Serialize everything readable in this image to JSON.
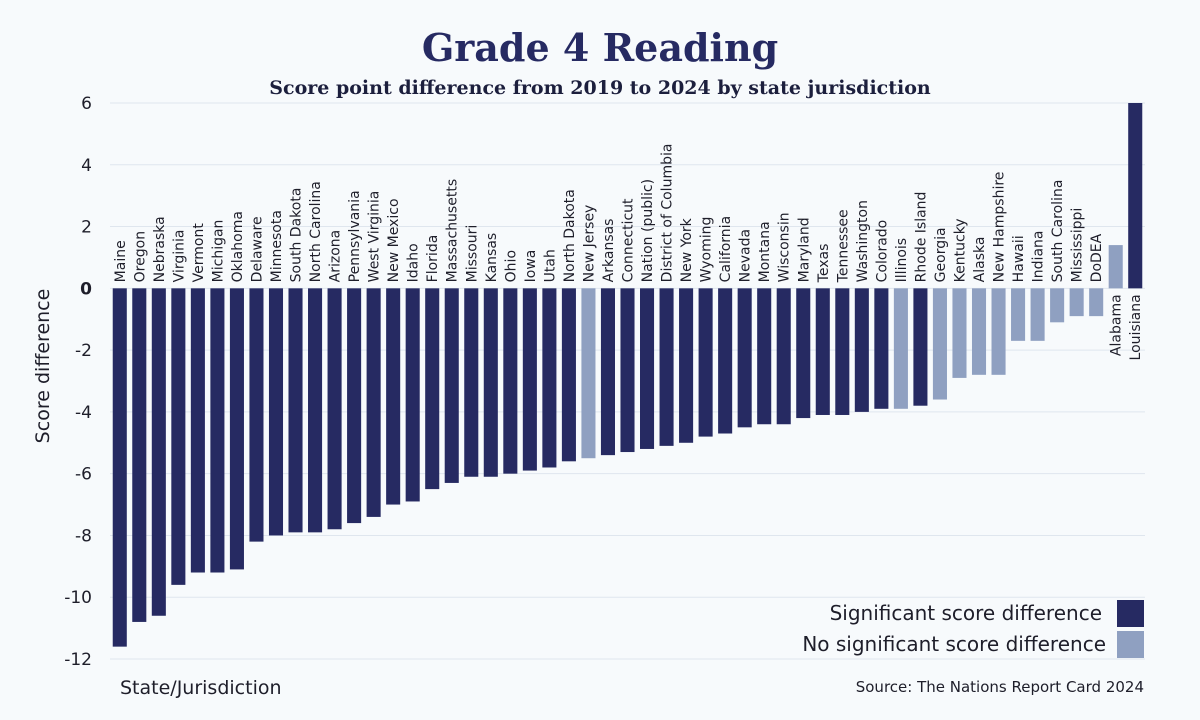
{
  "chart_data": {
    "type": "bar",
    "title": "Grade 4 Reading",
    "subtitle": "Score point difference from 2019 to 2024 by state jurisdiction",
    "ylabel": "Score difference",
    "xlabel": "State/Jurisdiction",
    "ylim": [
      -12,
      6
    ],
    "yticks": [
      -12,
      -10,
      -8,
      -6,
      -4,
      -2,
      0,
      2,
      4,
      6
    ],
    "grid": true,
    "legend_position": "bottom-right",
    "source": "Source: The Nations Report Card 2024",
    "colors": {
      "significant": "#262a62",
      "not_significant": "#8fa0c1"
    },
    "legend": [
      {
        "key": "significant",
        "label": "Significant score difference"
      },
      {
        "key": "not_significant",
        "label": "No significant score difference"
      }
    ],
    "categories": [
      "Maine",
      "Oregon",
      "Nebraska",
      "Virginia",
      "Vermont",
      "Michigan",
      "Oklahoma",
      "Delaware",
      "Minnesota",
      "South Dakota",
      "North Carolina",
      "Arizona",
      "Pennsylvania",
      "West Virginia",
      "New Mexico",
      "Idaho",
      "Florida",
      "Massachusetts",
      "Missouri",
      "Kansas",
      "Ohio",
      "Iowa",
      "Utah",
      "North Dakota",
      "New Jersey",
      "Arkansas",
      "Connecticut",
      "Nation (public)",
      "District of Columbia",
      "New York",
      "Wyoming",
      "California",
      "Nevada",
      "Montana",
      "Wisconsin",
      "Maryland",
      "Texas",
      "Tennessee",
      "Washington",
      "Colorado",
      "Illinois",
      "Rhode Island",
      "Georgia",
      "Kentucky",
      "Alaska",
      "New Hampshire",
      "Hawaii",
      "Indiana",
      "South Carolina",
      "Mississippi",
      "DoDEA",
      "Alabama",
      "Louisiana"
    ],
    "values": [
      -11.6,
      -10.8,
      -10.6,
      -9.6,
      -9.2,
      -9.2,
      -9.1,
      -8.2,
      -8.0,
      -7.9,
      -7.9,
      -7.8,
      -7.6,
      -7.4,
      -7.0,
      -6.9,
      -6.5,
      -6.3,
      -6.1,
      -6.1,
      -6.0,
      -5.9,
      -5.8,
      -5.6,
      -5.5,
      -5.4,
      -5.3,
      -5.2,
      -5.1,
      -5.0,
      -4.8,
      -4.7,
      -4.5,
      -4.4,
      -4.4,
      -4.2,
      -4.1,
      -4.1,
      -4.0,
      -3.9,
      -3.9,
      -3.8,
      -3.6,
      -2.9,
      -2.8,
      -2.8,
      -1.7,
      -1.7,
      -1.1,
      -0.9,
      -0.9,
      1.4,
      6.0
    ],
    "significant": [
      true,
      true,
      true,
      true,
      true,
      true,
      true,
      true,
      true,
      true,
      true,
      true,
      true,
      true,
      true,
      true,
      true,
      true,
      true,
      true,
      true,
      true,
      true,
      true,
      false,
      true,
      true,
      true,
      true,
      true,
      true,
      true,
      true,
      true,
      true,
      true,
      true,
      true,
      true,
      true,
      false,
      true,
      false,
      false,
      false,
      false,
      false,
      false,
      false,
      false,
      false,
      false,
      true
    ]
  }
}
